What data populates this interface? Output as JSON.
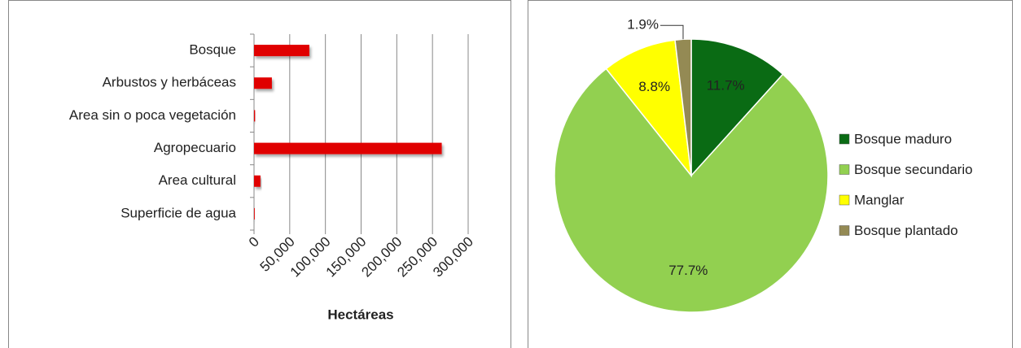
{
  "chart_data": [
    {
      "type": "bar",
      "orientation": "horizontal",
      "categories": [
        "Bosque",
        "Arbustos y herbáceas",
        "Area sin o poca vegetación",
        "Agropecuario",
        "Area cultural",
        "Superficie de agua"
      ],
      "values": [
        77500,
        25000,
        1500,
        263000,
        9000,
        1000
      ],
      "color": "#e00000",
      "xlabel": "Hectáreas",
      "xlim": [
        0,
        300000
      ],
      "xticks": [
        0,
        {
          "value": 50000,
          "label": "50,000"
        },
        {
          "value": 100000,
          "label": "100,000"
        },
        {
          "value": 150000,
          "label": "150,000"
        },
        {
          "value": 200000,
          "label": "200,000"
        },
        {
          "value": 250000,
          "label": "250,000"
        },
        {
          "value": 300000,
          "label": "300,000"
        }
      ],
      "grid": true
    },
    {
      "type": "pie",
      "categories": [
        "Bosque maduro",
        "Bosque secundario",
        "Manglar",
        "Bosque plantado"
      ],
      "values": [
        11.7,
        77.7,
        8.8,
        1.9
      ],
      "value_labels": [
        "11.7%",
        "77.7%",
        "8.8%",
        "1.9%"
      ],
      "colors": [
        "#0a6b14",
        "#92d050",
        "#ffff00",
        "#948a54"
      ],
      "legend": "right"
    }
  ]
}
